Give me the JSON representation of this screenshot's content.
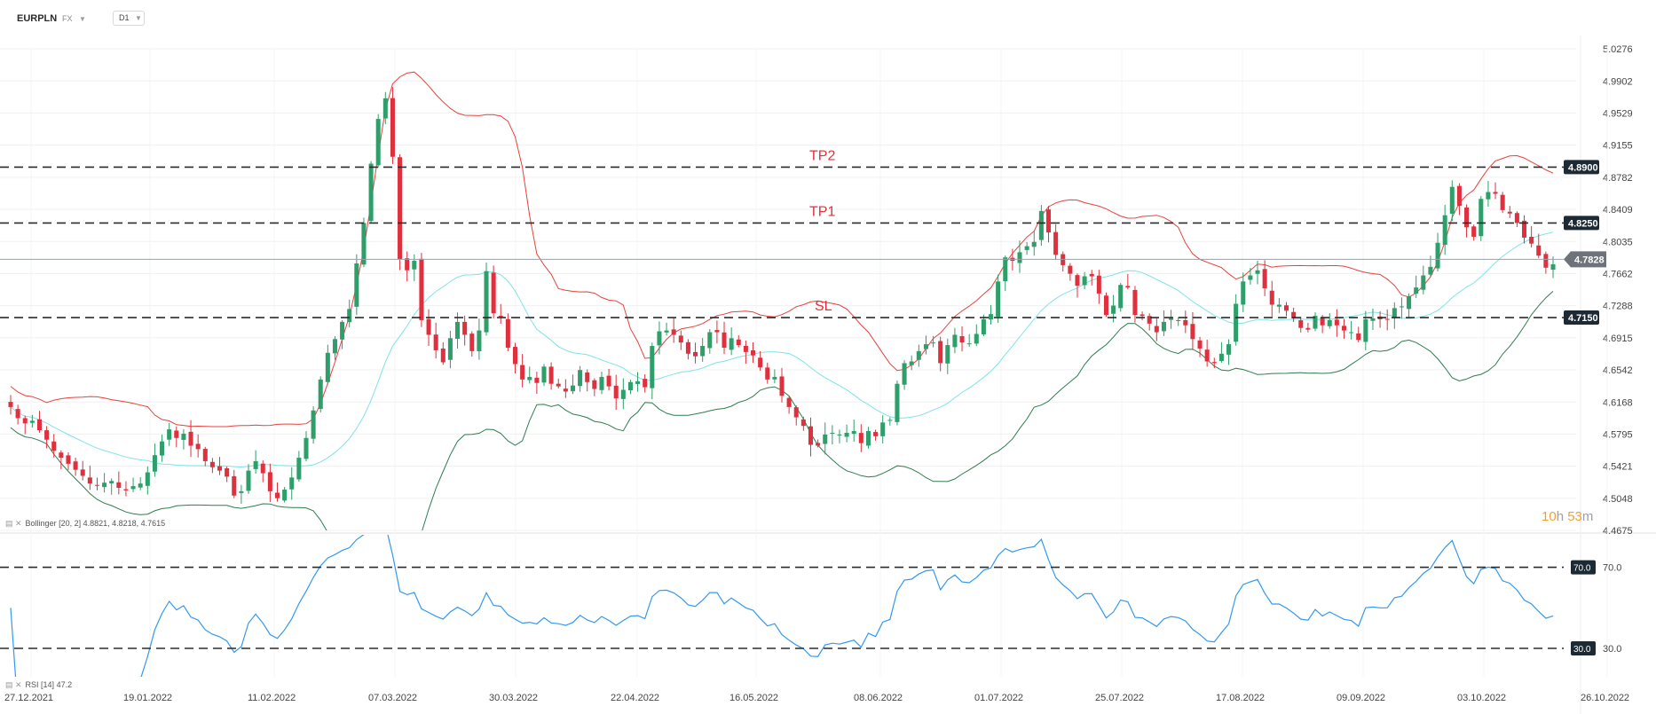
{
  "header": {
    "symbol": "EURPLN",
    "asset_class": "FX",
    "timeframe": "D1"
  },
  "indicators": {
    "bollinger_label": "Bollinger [20, 2] 4.8821, 4.8218, 4.7615",
    "rsi_label": "RSI [14] 47.2"
  },
  "countdown": {
    "hours": "10",
    "h_unit": "h",
    "minutes": "53",
    "m_unit": "m"
  },
  "colors": {
    "up": "#2e9e6a",
    "down": "#e0303e",
    "upper_band": "#e8413c",
    "middle_band": "#7fe3e8",
    "lower_band": "#2e7d4f",
    "rsi": "#3399ee",
    "level_line": "#2b2b2b",
    "annotation": "#e0303e",
    "current_price_bg": "#6d7378"
  },
  "chart_data": [
    {
      "type": "candlestick",
      "title": "EURPLN",
      "y_axis_ticks": [
        5.0276,
        4.9902,
        4.9529,
        4.9155,
        4.8782,
        4.8409,
        4.8035,
        4.7662,
        4.7288,
        4.6915,
        4.6542,
        4.6168,
        4.5795,
        4.5421,
        4.5048,
        4.4675
      ],
      "ylim": [
        4.4675,
        5.0276
      ],
      "x_axis_dates": [
        "27.12.2021",
        "19.01.2022",
        "11.02.2022",
        "07.03.2022",
        "30.03.2022",
        "22.04.2022",
        "16.05.2022",
        "08.06.2022",
        "01.07.2022",
        "25.07.2022",
        "17.08.2022",
        "09.09.2022",
        "03.10.2022",
        "26.10.2022"
      ],
      "current_price": 4.7828,
      "levels": [
        {
          "name": "TP2",
          "value": 4.89,
          "label": "4.8900"
        },
        {
          "name": "TP1",
          "value": 4.825,
          "label": "4.8250"
        },
        {
          "name": "SL",
          "value": 4.715,
          "label": "4.7150"
        }
      ],
      "close_series": [
        4.611,
        4.598,
        4.592,
        4.595,
        4.584,
        4.573,
        4.56,
        4.552,
        4.545,
        4.538,
        4.531,
        4.522,
        4.52,
        4.523,
        4.525,
        4.517,
        4.514,
        4.519,
        4.522,
        4.535,
        4.555,
        4.571,
        4.585,
        4.575,
        4.58,
        4.566,
        4.562,
        4.548,
        4.541,
        4.537,
        4.53,
        4.508,
        4.513,
        4.537,
        4.548,
        4.534,
        4.513,
        4.505,
        4.515,
        4.529,
        4.552,
        4.575,
        4.607,
        4.643,
        4.674,
        4.69,
        4.71,
        4.725,
        4.778,
        4.825,
        4.894,
        4.946,
        4.97,
        4.902,
        4.783,
        4.77,
        4.781,
        4.712,
        4.695,
        4.677,
        4.663,
        4.691,
        4.71,
        4.695,
        4.676,
        4.7,
        4.769,
        4.72,
        4.716,
        4.68,
        4.661,
        4.643,
        4.646,
        4.639,
        4.658,
        4.638,
        4.635,
        4.629,
        4.636,
        4.654,
        4.64,
        4.632,
        4.646,
        4.635,
        4.621,
        4.631,
        4.64,
        4.641,
        4.634,
        4.682,
        4.699,
        4.7,
        4.695,
        4.686,
        4.673,
        4.67,
        4.682,
        4.698,
        4.698,
        4.68,
        4.691,
        4.683,
        4.675,
        4.671,
        4.657,
        4.643,
        4.646,
        4.624,
        4.611,
        4.599,
        4.589,
        4.567,
        4.566,
        4.579,
        4.581,
        4.579,
        4.581,
        4.583,
        4.569,
        4.583,
        4.577,
        4.593,
        4.596,
        4.638,
        4.662,
        4.664,
        4.676,
        4.684,
        4.686,
        4.662,
        4.683,
        4.695,
        4.686,
        4.685,
        4.696,
        4.713,
        4.719,
        4.757,
        4.785,
        4.781,
        4.791,
        4.798,
        4.803,
        4.839,
        4.814,
        4.788,
        4.776,
        4.766,
        4.752,
        4.763,
        4.763,
        4.743,
        4.718,
        4.729,
        4.753,
        4.75,
        4.718,
        4.717,
        4.708,
        4.698,
        4.71,
        4.714,
        4.712,
        4.706,
        4.69,
        4.679,
        4.664,
        4.662,
        4.673,
        4.684,
        4.731,
        4.757,
        4.764,
        4.77,
        4.749,
        4.73,
        4.73,
        4.723,
        4.714,
        4.703,
        4.701,
        4.717,
        4.706,
        4.712,
        4.706,
        4.7,
        4.698,
        4.689,
        4.713,
        4.714,
        4.713,
        4.713,
        4.726,
        4.728,
        4.74,
        4.75,
        4.764,
        4.774,
        4.802,
        4.834,
        4.867,
        4.845,
        4.82,
        4.809,
        4.853,
        4.861,
        4.859,
        4.84,
        4.836,
        4.825,
        4.808,
        4.801,
        4.787,
        4.773,
        4.777
      ]
    },
    {
      "type": "line",
      "title": "RSI",
      "levels": [
        {
          "name": "overbought",
          "value": 70,
          "label": "70.0"
        },
        {
          "name": "oversold",
          "value": 30,
          "label": "30.0"
        }
      ],
      "ylim": [
        16,
        86
      ]
    }
  ]
}
